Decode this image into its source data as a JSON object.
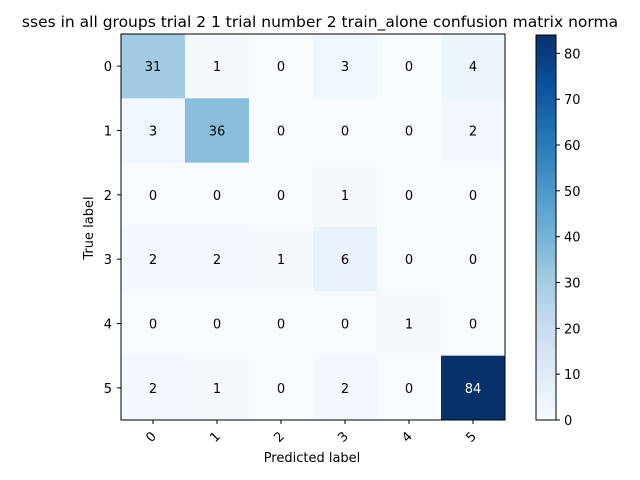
{
  "chart_data": {
    "type": "heatmap",
    "title": "sses in all groups trial 2 1 trial number 2 train_alone confusion matrix norma",
    "xlabel": "Predicted label",
    "ylabel": "True label",
    "x_categories": [
      "0",
      "1",
      "2",
      "3",
      "4",
      "5"
    ],
    "y_categories": [
      "0",
      "1",
      "2",
      "3",
      "4",
      "5"
    ],
    "values": [
      [
        31,
        1,
        0,
        3,
        0,
        4
      ],
      [
        3,
        36,
        0,
        0,
        0,
        2
      ],
      [
        0,
        0,
        0,
        1,
        0,
        0
      ],
      [
        2,
        2,
        1,
        6,
        0,
        0
      ],
      [
        0,
        0,
        0,
        0,
        1,
        0
      ],
      [
        2,
        1,
        0,
        2,
        0,
        84
      ]
    ],
    "colormap": "Blues",
    "vmin": 0,
    "vmax": 84,
    "colorbar": {
      "ticks": [
        0,
        10,
        20,
        30,
        40,
        50,
        60,
        70,
        80
      ]
    },
    "x_tick_rotation": "45 degrees"
  }
}
